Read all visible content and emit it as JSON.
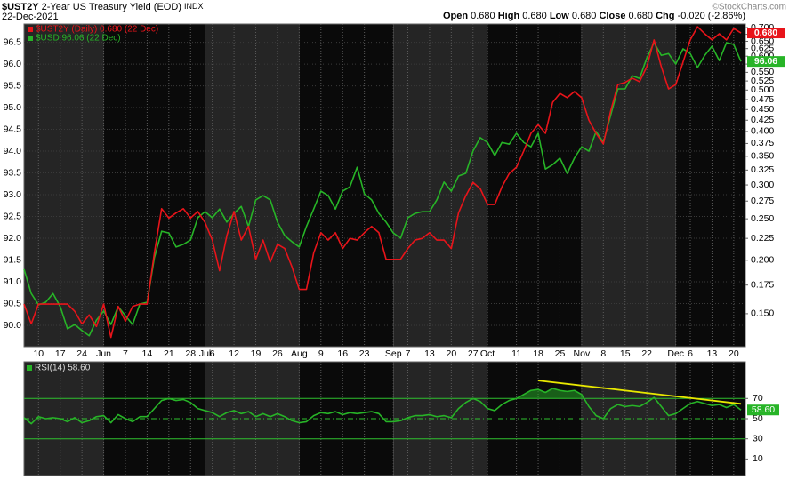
{
  "header": {
    "symbol": "$UST2Y",
    "name": "2-Year US Treasury Yield (EOD)",
    "exchange": "INDX",
    "date": "22-Dec-2021",
    "quote": [
      {
        "label": "Open",
        "value": "0.680"
      },
      {
        "label": "High",
        "value": "0.680"
      },
      {
        "label": "Low",
        "value": "0.680"
      },
      {
        "label": "Close",
        "value": "0.680"
      },
      {
        "label": "Chg",
        "value": "-0.020 (-2.86%)"
      }
    ],
    "copyright": "©StockCharts.com"
  },
  "chart_data": [
    {
      "type": "line",
      "categories": [
        null,
        null,
        "10",
        null,
        null,
        "17",
        null,
        null,
        "24",
        null,
        null,
        "Jun",
        null,
        null,
        "7",
        null,
        null,
        "14",
        null,
        null,
        "21",
        null,
        null,
        "28",
        null,
        "Jul",
        "6",
        null,
        null,
        "12",
        null,
        null,
        "19",
        null,
        null,
        "26",
        null,
        null,
        "Aug",
        null,
        null,
        "9",
        null,
        null,
        "16",
        null,
        null,
        "23",
        null,
        null,
        null,
        "Sep",
        null,
        "7",
        null,
        null,
        "13",
        null,
        null,
        "20",
        null,
        null,
        "27",
        null,
        "Oct",
        null,
        null,
        null,
        "11",
        null,
        null,
        "18",
        null,
        null,
        "25",
        null,
        null,
        "Nov",
        null,
        null,
        "8",
        null,
        null,
        "15",
        null,
        null,
        "22",
        null,
        null,
        null,
        "Dec",
        null,
        "6",
        null,
        null,
        "13",
        null,
        null,
        "20",
        null
      ],
      "series": [
        {
          "name": "$UST2Y (Daily) 0.680 (22 Dec)",
          "color": "#e8141a",
          "axis": "y2",
          "end_label": "0.680",
          "values": [
            0.158,
            0.142,
            0.158,
            0.158,
            0.158,
            0.158,
            0.158,
            0.152,
            0.142,
            0.149,
            0.14,
            0.158,
            0.132,
            0.156,
            0.144,
            0.156,
            0.158,
            0.158,
            0.208,
            0.264,
            0.251,
            0.258,
            0.264,
            0.251,
            0.26,
            0.245,
            0.223,
            0.189,
            0.228,
            0.26,
            0.223,
            0.24,
            0.201,
            0.223,
            0.198,
            0.218,
            0.213,
            0.193,
            0.171,
            0.171,
            0.208,
            0.232,
            0.223,
            0.232,
            0.213,
            0.225,
            0.223,
            0.232,
            0.24,
            0.232,
            0.201,
            0.201,
            0.201,
            0.213,
            0.223,
            0.225,
            0.232,
            0.223,
            0.223,
            0.213,
            0.258,
            0.283,
            0.304,
            0.294,
            0.27,
            0.27,
            0.297,
            0.319,
            0.33,
            0.36,
            0.396,
            0.415,
            0.396,
            0.468,
            0.491,
            0.48,
            0.496,
            0.48,
            0.425,
            0.396,
            0.374,
            0.446,
            0.515,
            0.521,
            0.533,
            0.523,
            0.567,
            0.655,
            0.567,
            0.503,
            0.515,
            0.581,
            0.655,
            0.703,
            0.677,
            0.655,
            0.677,
            0.655,
            0.697,
            0.68
          ]
        },
        {
          "name": "$USD 96.06 (22 Dec)",
          "color": "#27b427",
          "end_label": "96.06",
          "values": [
            91.29,
            90.73,
            90.47,
            90.53,
            90.73,
            90.43,
            89.92,
            90.02,
            89.88,
            89.76,
            90.12,
            90.33,
            90.02,
            90.43,
            90.22,
            90.02,
            90.49,
            90.53,
            91.55,
            92.16,
            92.12,
            91.8,
            91.86,
            91.96,
            92.47,
            92.61,
            92.47,
            92.67,
            92.37,
            92.57,
            92.73,
            92.27,
            92.88,
            92.98,
            92.88,
            92.37,
            92.06,
            91.92,
            91.8,
            92.27,
            92.67,
            93.08,
            92.98,
            92.67,
            93.08,
            93.18,
            93.63,
            93.02,
            92.88,
            92.57,
            92.37,
            92.12,
            92.0,
            92.47,
            92.57,
            92.61,
            92.61,
            92.88,
            93.29,
            93.08,
            93.43,
            93.49,
            94.0,
            94.31,
            94.2,
            93.9,
            94.2,
            94.16,
            94.41,
            94.2,
            94.1,
            94.41,
            93.59,
            93.69,
            93.84,
            93.49,
            93.84,
            94.1,
            94.0,
            94.45,
            94.2,
            94.82,
            95.43,
            95.43,
            95.73,
            95.67,
            96.14,
            96.49,
            96.2,
            96.24,
            96.0,
            96.35,
            96.24,
            95.92,
            96.2,
            96.41,
            96.08,
            96.49,
            96.45,
            96.06
          ]
        }
      ],
      "ylim": [
        89.51,
        96.92
      ],
      "yticks": [
        {
          "value": 90,
          "label": "90.0"
        },
        90.5,
        {
          "value": 91,
          "label": "91.0"
        },
        91.5,
        {
          "value": 92,
          "label": "92.0"
        },
        92.5,
        {
          "value": 93,
          "label": "93.0"
        },
        93.5,
        {
          "value": 94,
          "label": "94.0"
        },
        94.5,
        {
          "value": 95,
          "label": "95.0"
        },
        95.5,
        {
          "value": 96,
          "label": "96.0"
        },
        96.5
      ],
      "y2lim": [
        0.1256,
        0.7135
      ],
      "y2log": true,
      "y2ticks": [
        {
          "value": 0.15,
          "label": "0.150"
        },
        {
          "value": 0.175,
          "label": "0.175"
        },
        {
          "value": 0.2,
          "label": "0.200"
        },
        {
          "value": 0.225,
          "label": "0.225"
        },
        {
          "value": 0.25,
          "label": "0.250"
        },
        {
          "value": 0.275,
          "label": "0.275"
        },
        {
          "value": 0.3,
          "label": "0.300"
        },
        {
          "value": 0.325,
          "label": "0.325"
        },
        {
          "value": 0.35,
          "label": "0.350"
        },
        {
          "value": 0.375,
          "label": "0.375"
        },
        {
          "value": 0.4,
          "label": "0.400"
        },
        {
          "value": 0.425,
          "label": "0.425"
        },
        {
          "value": 0.45,
          "label": "0.450"
        },
        {
          "value": 0.475,
          "label": "0.475"
        },
        {
          "value": 0.5,
          "label": "0.500"
        },
        {
          "value": 0.525,
          "label": "0.525"
        },
        {
          "value": 0.55,
          "label": "0.550"
        },
        {
          "value": 0.575,
          "label": "0.575"
        },
        {
          "value": 0.6,
          "label": "0.600"
        },
        {
          "value": 0.625,
          "label": "0.625"
        },
        {
          "value": 0.65,
          "label": "0.650"
        },
        {
          "value": 0.675,
          "label": "0.675"
        },
        {
          "value": 0.7,
          "label": "0.700"
        }
      ],
      "grid": true
    },
    {
      "type": "line",
      "title": "RSI(14) 58.60",
      "color": "#27b427",
      "end_label": "58.60",
      "values": [
        51,
        45,
        52,
        50,
        51,
        50,
        47,
        51,
        46,
        48,
        52,
        53,
        46,
        54,
        50,
        47,
        52,
        52,
        60,
        68,
        70,
        68,
        69,
        66,
        60,
        58,
        56,
        52,
        56,
        58,
        55,
        57,
        52,
        55,
        52,
        55,
        52,
        48,
        46,
        47,
        53,
        56,
        55,
        57,
        54,
        56,
        55,
        56,
        57,
        55,
        47,
        47,
        48,
        51,
        53,
        53,
        54,
        52,
        53,
        51,
        60,
        66,
        70,
        67,
        60,
        58,
        64,
        68,
        70,
        74,
        78,
        79,
        76,
        80,
        78,
        77,
        78,
        74,
        62,
        53,
        50,
        60,
        64,
        62,
        63,
        62,
        66,
        71,
        62,
        53,
        55,
        60,
        65,
        67,
        65,
        63,
        64,
        61,
        64,
        58.6
      ],
      "ylim": [
        -6.4,
        106.4
      ],
      "yticks": [
        10,
        30,
        50,
        70
      ],
      "reference_lines": [
        {
          "value": 70
        },
        {
          "value": 50,
          "dash": true
        },
        {
          "value": 30
        }
      ],
      "overbought_fill": 70,
      "trendline": {
        "values": [
          87.8,
          64.7
        ],
        "color": "#e8e800"
      }
    }
  ]
}
